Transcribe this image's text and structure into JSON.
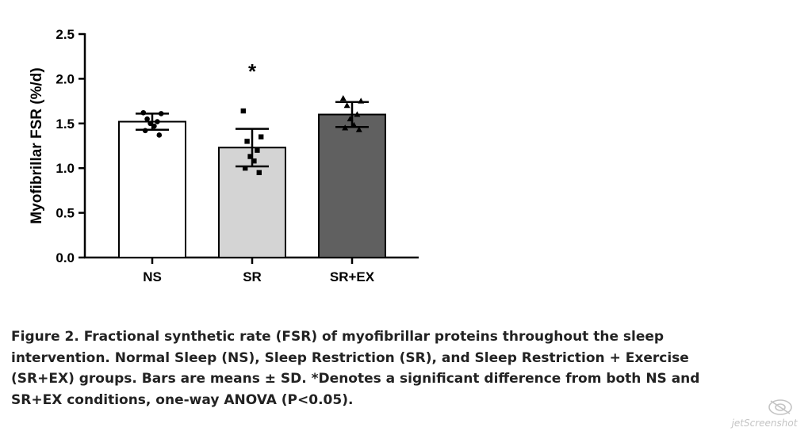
{
  "chart_data": {
    "type": "bar",
    "categories": [
      "NS",
      "SR",
      "SR+EX"
    ],
    "values": [
      1.52,
      1.23,
      1.6
    ],
    "sd": [
      0.09,
      0.21,
      0.14
    ],
    "points": [
      [
        1.62,
        1.61,
        1.55,
        1.52,
        1.5,
        1.47,
        1.42,
        1.37
      ],
      [
        1.64,
        1.35,
        1.3,
        1.2,
        1.13,
        1.08,
        1.0,
        0.95
      ],
      [
        1.78,
        1.75,
        1.7,
        1.6,
        1.55,
        1.48,
        1.45,
        1.43
      ]
    ],
    "marker_shapes": [
      "circle",
      "square",
      "triangle"
    ],
    "bar_colors": [
      "#ffffff",
      "#d4d4d4",
      "#606060"
    ],
    "annotations": [
      {
        "category": "SR",
        "text": "*"
      }
    ],
    "ylabel": "Myofibrillar FSR (%/d)",
    "xlabel": "",
    "ylim": [
      0,
      2.5
    ],
    "yticks": [
      "0.0",
      "0.5",
      "1.0",
      "1.5",
      "2.0",
      "2.5"
    ],
    "grid": false
  },
  "caption": "Figure 2. Fractional synthetic rate (FSR) of myofibrillar proteins throughout the sleep intervention. Normal Sleep (NS), Sleep Restriction (SR), and Sleep Restriction + Exercise (SR+EX) groups. Bars are means ± SD. *Denotes a significant difference from both NS and SR+EX conditions, one-way ANOVA (P<0.05).",
  "watermark": "jetScreenshot"
}
